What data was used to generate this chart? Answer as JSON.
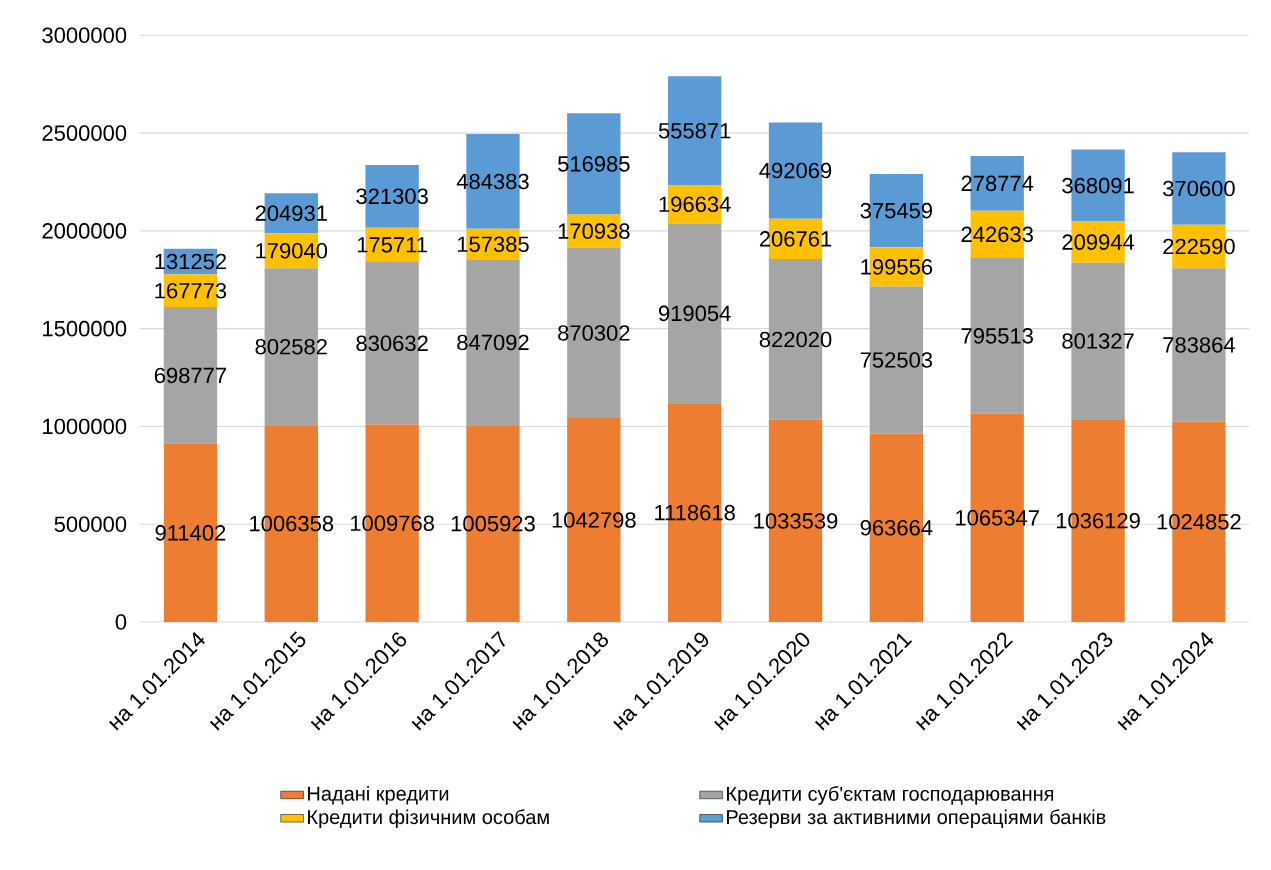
{
  "chart_data": {
    "type": "bar",
    "stacked": true,
    "categories": [
      "на 1.01.2014",
      "на 1.01.2015",
      "на 1.01.2016",
      "на 1.01.2017",
      "на 1.01.2018",
      "на 1.01.2019",
      "на 1.01.2020",
      "на 1.01.2021",
      "на 1.01.2022",
      "на 1.01.2023",
      "на 1.01.2024"
    ],
    "series": [
      {
        "name": "Надані кредити",
        "color": "#ed7d31",
        "values": [
          911402,
          1006358,
          1009768,
          1005923,
          1042798,
          1118618,
          1033539,
          963664,
          1065347,
          1036129,
          1024852
        ]
      },
      {
        "name": "Кредити суб'єктам господарювання",
        "color": "#a5a5a5",
        "values": [
          698777,
          802582,
          830632,
          847092,
          870302,
          919054,
          822020,
          752503,
          795513,
          801327,
          783864
        ]
      },
      {
        "name": "Кредити фізичним особам",
        "color": "#ffc000",
        "values": [
          167773,
          179040,
          175711,
          157385,
          170938,
          196634,
          206761,
          199556,
          242633,
          209944,
          222590
        ]
      },
      {
        "name": "Резерви за активними операціями банків",
        "color": "#5b9bd5",
        "values": [
          131252,
          204931,
          321303,
          484383,
          516985,
          555871,
          492069,
          375459,
          278774,
          368091,
          370600
        ]
      }
    ],
    "ylim": [
      0,
      3000000
    ],
    "yticks": [
      0,
      500000,
      1000000,
      1500000,
      2000000,
      2500000,
      3000000
    ],
    "grid": "y",
    "legend": "bottom",
    "data_labels": true
  }
}
